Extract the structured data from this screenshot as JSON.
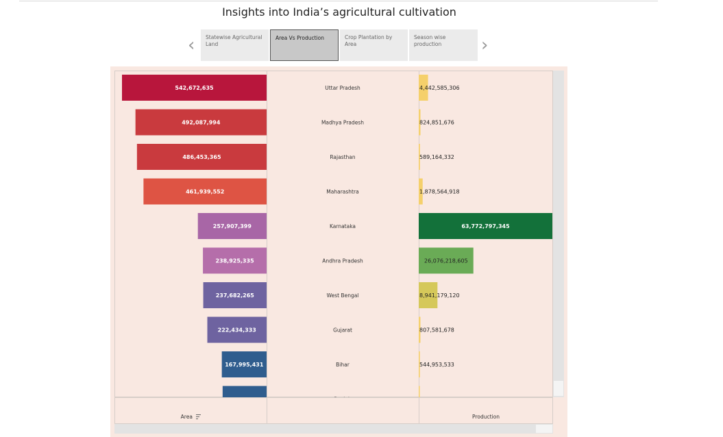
{
  "title": "Insights into India’s agricultural cultivation",
  "nav": {
    "prev_icon": "‹",
    "next_icon": "›"
  },
  "tabs": [
    {
      "label": "Statewise Agricultural Land",
      "active": false
    },
    {
      "label": "Area Vs Production",
      "active": true
    },
    {
      "label": "Crop Plantation by Area",
      "active": false
    },
    {
      "label": "Season wise production",
      "active": false
    }
  ],
  "footer": {
    "area_label": "Area",
    "sort_icon": "sort-descending-icon",
    "production_label": "Production"
  },
  "chart_data": {
    "type": "bar",
    "categories": [
      "Uttar Pradesh",
      "Madhya Pradesh",
      "Rajasthan",
      "Maharashtra",
      "Karnataka",
      "Andhra Pradesh",
      "West Bengal",
      "Gujarat",
      "Bihar",
      "Punjab"
    ],
    "series": [
      {
        "name": "Area",
        "values": [
          542672635,
          492087994,
          486453365,
          461939552,
          257907399,
          238925335,
          237682265,
          222434333,
          167995431,
          165000000
        ],
        "labels": [
          "542,672,635",
          "492,087,994",
          "486,453,365",
          "461,939,552",
          "257,907,399",
          "238,925,335",
          "237,682,265",
          "222,434,333",
          "167,995,431",
          ""
        ],
        "colors": [
          "#b8163c",
          "#c93a3e",
          "#c93a3e",
          "#de5444",
          "#a866a6",
          "#b56eaa",
          "#6e63a0",
          "#6e63a0",
          "#2f5d8e",
          "#2f5d8e"
        ]
      },
      {
        "name": "Production",
        "values": [
          4442585306,
          824851676,
          589164332,
          1878564918,
          63772797345,
          26076218605,
          8941179120,
          807581678,
          544953533,
          500000000
        ],
        "labels": [
          "4,442,585,306",
          "824,851,676",
          "589,164,332",
          "1,878,564,918",
          "63,772,797,345",
          "26,076,218,605",
          "8,941,179,120",
          "807,581,678",
          "544,953,533",
          ""
        ],
        "colors": [
          "#f5d06b",
          "#f5d06b",
          "#f5d06b",
          "#f5d06b",
          "#13713a",
          "#6aab56",
          "#d5c85a",
          "#f5d06b",
          "#f5d06b",
          "#f5d06b"
        ]
      }
    ],
    "sort": "Area descending"
  }
}
